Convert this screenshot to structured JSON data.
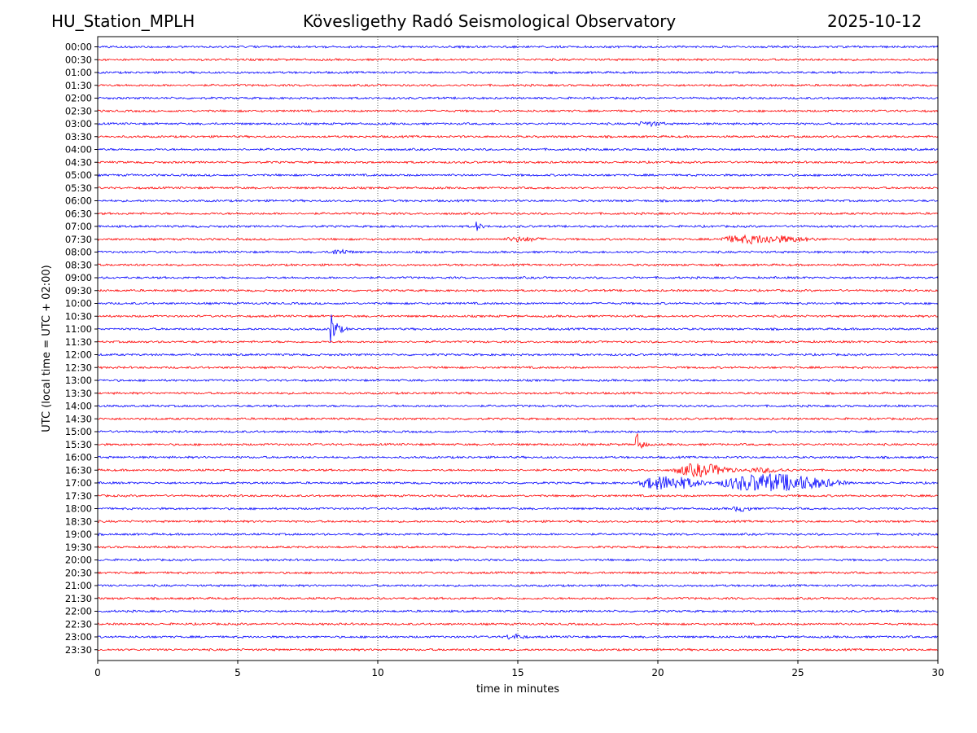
{
  "header": {
    "station": "HU_Station_MPLH",
    "observatory": "Kövesligethy Radó Seismological Observatory",
    "date": "2025-10-12"
  },
  "chart_data": {
    "type": "line",
    "title": "Kövesligethy Radó Seismological Observatory",
    "xlabel": "time in minutes",
    "ylabel": "UTC (local time = UTC + 02:00)",
    "xlim": [
      0,
      30
    ],
    "x_ticks": [
      "0",
      "5",
      "10",
      "15",
      "20",
      "25",
      "30"
    ],
    "grid": "vertical dotted lines at 5-minute intervals",
    "trace_colors": [
      "#0000ff",
      "#ff0000"
    ],
    "rows": [
      "00:00",
      "00:30",
      "01:00",
      "01:30",
      "02:00",
      "02:30",
      "03:00",
      "03:30",
      "04:00",
      "04:30",
      "05:00",
      "05:30",
      "06:00",
      "06:30",
      "07:00",
      "07:30",
      "08:00",
      "08:30",
      "09:00",
      "09:30",
      "10:00",
      "10:30",
      "11:00",
      "11:30",
      "12:00",
      "12:30",
      "13:00",
      "13:30",
      "14:00",
      "14:30",
      "15:00",
      "15:30",
      "16:00",
      "16:30",
      "17:00",
      "17:30",
      "18:00",
      "18:30",
      "19:00",
      "19:30",
      "20:00",
      "20:30",
      "21:00",
      "21:30",
      "22:00",
      "22:30",
      "23:00",
      "23:30"
    ],
    "events": [
      {
        "row": "03:00",
        "start_min": 19.2,
        "duration_min": 1.2,
        "amplitude": 2.5,
        "spike": false
      },
      {
        "row": "07:00",
        "start_min": 13.5,
        "duration_min": 0.5,
        "amplitude": 8,
        "spike": true
      },
      {
        "row": "07:30",
        "start_min": 14.5,
        "duration_min": 1.6,
        "amplitude": 2.5,
        "spike": false
      },
      {
        "row": "07:30",
        "start_min": 22.0,
        "duration_min": 4.0,
        "amplitude": 5,
        "spike": false
      },
      {
        "row": "08:00",
        "start_min": 8.2,
        "duration_min": 1.0,
        "amplitude": 3,
        "spike": false
      },
      {
        "row": "11:00",
        "start_min": 8.3,
        "duration_min": 0.7,
        "amplitude": 28,
        "spike": true
      },
      {
        "row": "15:30",
        "start_min": 19.2,
        "duration_min": 0.6,
        "amplitude": 20,
        "spike": true
      },
      {
        "row": "16:30",
        "start_min": 20.5,
        "duration_min": 2.5,
        "amplitude": 8,
        "spike": false
      },
      {
        "row": "16:30",
        "start_min": 23.0,
        "duration_min": 2.0,
        "amplitude": 2.5,
        "spike": false
      },
      {
        "row": "17:00",
        "start_min": 19.2,
        "duration_min": 2.8,
        "amplitude": 9,
        "spike": false
      },
      {
        "row": "17:00",
        "start_min": 22.0,
        "duration_min": 5.0,
        "amplitude": 12,
        "spike": false
      },
      {
        "row": "18:00",
        "start_min": 22.6,
        "duration_min": 0.9,
        "amplitude": 3,
        "spike": false
      },
      {
        "row": "23:00",
        "start_min": 14.5,
        "duration_min": 0.9,
        "amplitude": 3,
        "spike": false
      }
    ]
  }
}
